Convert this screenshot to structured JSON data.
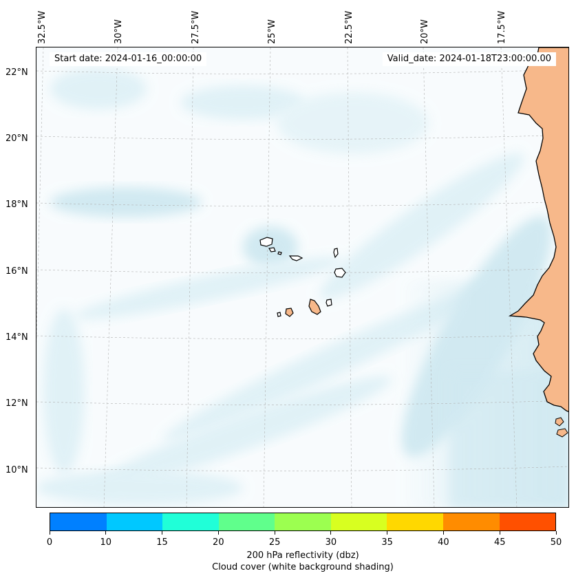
{
  "map": {
    "start_date": "Start date: 2024-01-16_00:00:00",
    "valid_date": "Valid_date: 2024-01-18T23:00:00.00",
    "longitude_labels": [
      "32.5°W",
      "30°W",
      "27.5°W",
      "25°W",
      "22.5°W",
      "20°W",
      "17.5°W"
    ],
    "latitude_labels": [
      "22°N",
      "20°N",
      "18°N",
      "16°N",
      "14°N",
      "12°N",
      "10°N"
    ],
    "colors": {
      "land": "#f7b88a",
      "cloud": "#acd8e6",
      "coastline": "#000000",
      "gridline": "#b0b0b0"
    }
  },
  "colorbar": {
    "ticks": [
      "0",
      "10",
      "15",
      "20",
      "25",
      "30",
      "35",
      "40",
      "45",
      "50"
    ],
    "colors": [
      "#0080ff",
      "#00c8ff",
      "#20ffd8",
      "#60ff8c",
      "#9cff50",
      "#d8ff20",
      "#ffd800",
      "#ff8c00",
      "#ff5000"
    ],
    "label_line1": "200 hPa reflectivity (dbz)",
    "label_line2": "Cloud cover (white background shading)"
  }
}
